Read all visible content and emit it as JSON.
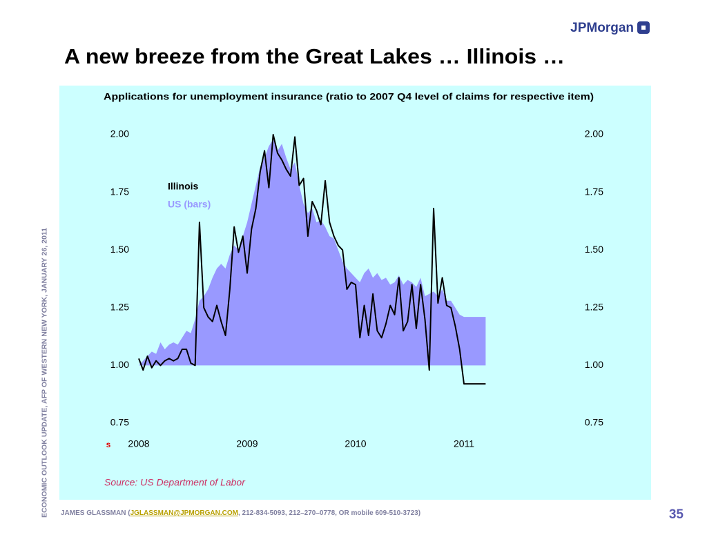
{
  "logo": "JPMorgan",
  "slide_title": "A new breeze from the Great Lakes … Illinois …",
  "side_note": "ECONOMIC OUTLOOK UPDATE, AFP OF WESTERN NEW YORK, JANUARY 26, 2011",
  "footer": {
    "before": "JAMES GLASSMAN (",
    "link": "JGLASSMAN@JPMORGAN.COM",
    "after": ", 212-834-5093, 212–270–0778, OR mobile 609-510-3723)"
  },
  "page_number": "35",
  "chart_data": {
    "type": "line",
    "title": "Applications for unemployment insurance (ratio to 2007 Q4 level of claims for respective item)",
    "source": "Source: US Department of Labor",
    "marker": "s",
    "x": [
      2008.0,
      2008.04,
      2008.08,
      2008.12,
      2008.16,
      2008.2,
      2008.24,
      2008.28,
      2008.32,
      2008.36,
      2008.4,
      2008.44,
      2008.48,
      2008.52,
      2008.56,
      2008.6,
      2008.64,
      2008.68,
      2008.72,
      2008.76,
      2008.8,
      2008.84,
      2008.88,
      2008.92,
      2008.96,
      2009.0,
      2009.04,
      2009.08,
      2009.12,
      2009.16,
      2009.2,
      2009.24,
      2009.28,
      2009.32,
      2009.36,
      2009.4,
      2009.44,
      2009.48,
      2009.52,
      2009.56,
      2009.6,
      2009.64,
      2009.68,
      2009.72,
      2009.76,
      2009.8,
      2009.84,
      2009.88,
      2009.92,
      2009.96,
      2010.0,
      2010.04,
      2010.08,
      2010.12,
      2010.16,
      2010.2,
      2010.24,
      2010.28,
      2010.32,
      2010.36,
      2010.4,
      2010.44,
      2010.48,
      2010.52,
      2010.56,
      2010.6,
      2010.64,
      2010.68,
      2010.72,
      2010.76,
      2010.8,
      2010.84,
      2010.88,
      2010.92,
      2010.96,
      2011.0,
      2011.04,
      2011.08,
      2011.12,
      2011.16,
      2011.2
    ],
    "series": [
      {
        "name": "US (bars)",
        "type": "area",
        "color": "#9999ff",
        "base": 1.0,
        "values": [
          1.0,
          1.02,
          1.04,
          1.06,
          1.05,
          1.1,
          1.07,
          1.09,
          1.1,
          1.09,
          1.12,
          1.15,
          1.14,
          1.2,
          1.28,
          1.3,
          1.33,
          1.38,
          1.42,
          1.44,
          1.42,
          1.48,
          1.52,
          1.5,
          1.56,
          1.62,
          1.7,
          1.78,
          1.86,
          1.9,
          1.95,
          1.98,
          1.93,
          1.96,
          1.9,
          1.85,
          1.88,
          1.78,
          1.7,
          1.66,
          1.68,
          1.62,
          1.63,
          1.6,
          1.56,
          1.55,
          1.5,
          1.45,
          1.42,
          1.4,
          1.38,
          1.36,
          1.4,
          1.42,
          1.38,
          1.4,
          1.37,
          1.38,
          1.35,
          1.36,
          1.39,
          1.35,
          1.37,
          1.36,
          1.34,
          1.38,
          1.3,
          1.31,
          1.32,
          1.3,
          1.33,
          1.28,
          1.28,
          1.25,
          1.22,
          1.21,
          1.21,
          1.21,
          1.21,
          1.21,
          1.21
        ]
      },
      {
        "name": "Illinois",
        "type": "line",
        "color": "#000000",
        "values": [
          1.03,
          0.98,
          1.04,
          0.99,
          1.02,
          1.0,
          1.02,
          1.03,
          1.02,
          1.03,
          1.07,
          1.07,
          1.01,
          1.0,
          1.62,
          1.25,
          1.21,
          1.19,
          1.26,
          1.19,
          1.13,
          1.33,
          1.6,
          1.49,
          1.56,
          1.4,
          1.59,
          1.68,
          1.84,
          1.93,
          1.77,
          2.0,
          1.92,
          1.89,
          1.85,
          1.82,
          1.99,
          1.78,
          1.81,
          1.56,
          1.71,
          1.67,
          1.61,
          1.8,
          1.62,
          1.56,
          1.52,
          1.5,
          1.33,
          1.36,
          1.35,
          1.12,
          1.26,
          1.13,
          1.31,
          1.15,
          1.12,
          1.18,
          1.26,
          1.22,
          1.38,
          1.15,
          1.19,
          1.35,
          1.16,
          1.35,
          1.2,
          0.98,
          1.68,
          1.27,
          1.38,
          1.26,
          1.25,
          1.17,
          1.07,
          0.92,
          0.92,
          0.92,
          0.92,
          0.92,
          0.92
        ]
      }
    ],
    "xlim": [
      2007.9,
      2011.4
    ],
    "xticks": [
      2008,
      2009,
      2010,
      2011
    ],
    "ylim": [
      0.75,
      2.0
    ],
    "yticks": [
      {
        "value": 0.75,
        "label": "0.75"
      },
      {
        "value": 1.0,
        "label": "1.00"
      },
      {
        "value": 1.25,
        "label": "1.25"
      },
      {
        "value": 1.5,
        "label": "1.50"
      },
      {
        "value": 1.75,
        "label": "1.75"
      },
      {
        "value": 2.0,
        "label": "2.00"
      }
    ],
    "y2lim": [
      0.75,
      2.0
    ],
    "y2ticks": [
      {
        "value": 0.75,
        "label": "0.75"
      },
      {
        "value": 1.0,
        "label": "1.00"
      },
      {
        "value": 1.25,
        "label": "1.25"
      },
      {
        "value": 1.5,
        "label": "1.50"
      },
      {
        "value": 1.75,
        "label": "1.75"
      },
      {
        "value": 2.0,
        "label": "2.00"
      }
    ],
    "legend": "top-left",
    "grid": false,
    "background": "#ccffff"
  }
}
